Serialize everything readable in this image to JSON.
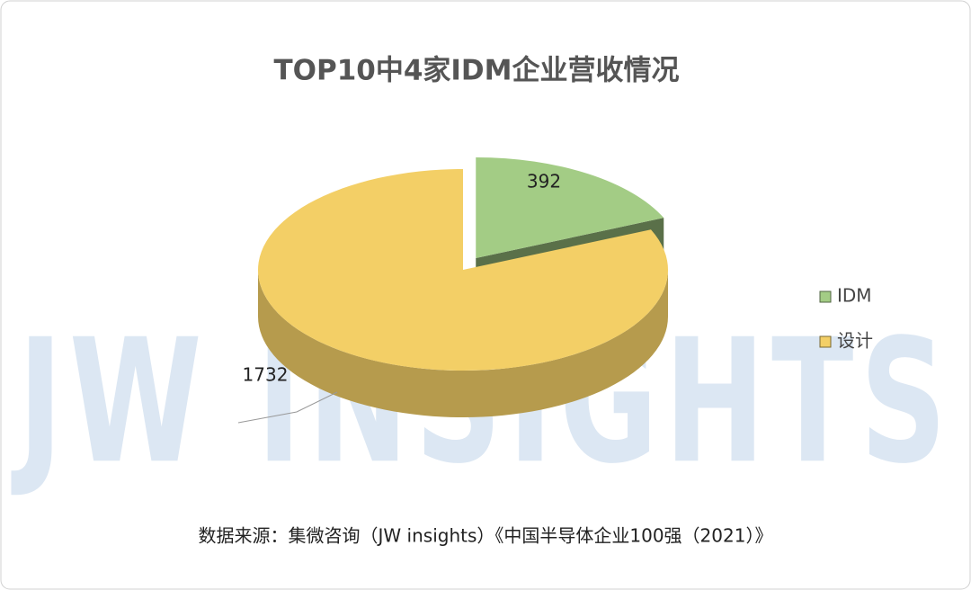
{
  "chart_data": {
    "type": "pie",
    "title": "TOP10中4家IDM企业营收情况",
    "categories": [
      "IDM",
      "设计"
    ],
    "values": [
      392,
      1732
    ],
    "colors": [
      "#a3cc85",
      "#f3cf66"
    ],
    "watermark": "JW INSIGHTS",
    "source": "数据来源：集微咨询（JW insights）《中国半导体企业100强（2021）》"
  }
}
